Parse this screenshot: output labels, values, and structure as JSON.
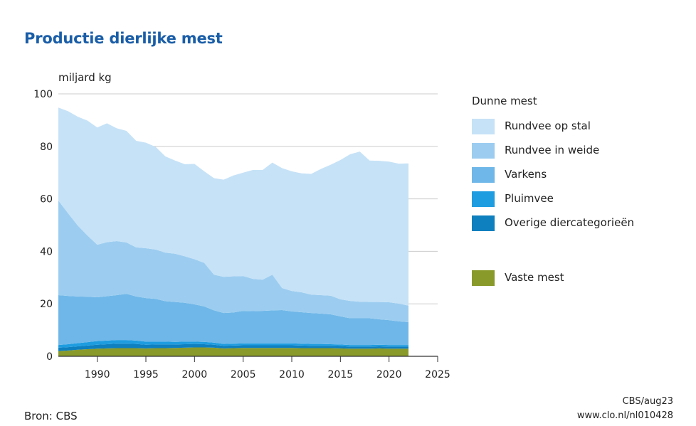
{
  "title": "Productie dierlijke mest",
  "source": "Bron: CBS",
  "credit_line1": "CBS/aug23",
  "credit_line2": "www.clo.nl/nl010428",
  "legend": {
    "group_title": "Dunne mest"
  },
  "colors": {
    "rundvee_op_stal": "#c6e2f7",
    "rundvee_in_weide": "#9ccdf0",
    "varkens": "#6fb7e8",
    "pluimvee": "#1e9de0",
    "overige": "#0e7fbf",
    "vaste_mest": "#8a9a2a",
    "title": "#1a5ea8",
    "grid": "#cccccc"
  },
  "chart_data": {
    "type": "area",
    "stacked": true,
    "title": "Productie dierlijke mest",
    "ylabel": "miljard kg",
    "xlabel": "",
    "xlim": [
      1986,
      2025
    ],
    "ylim": [
      0,
      100
    ],
    "x_ticks": [
      1990,
      1995,
      2000,
      2005,
      2010,
      2015,
      2020,
      2025
    ],
    "y_ticks": [
      0,
      20,
      40,
      60,
      80,
      100
    ],
    "grid": "horizontal",
    "legend_position": "right",
    "x": [
      1986,
      1987,
      1988,
      1989,
      1990,
      1991,
      1992,
      1993,
      1994,
      1995,
      1996,
      1997,
      1998,
      1999,
      2000,
      2001,
      2002,
      2003,
      2004,
      2005,
      2006,
      2007,
      2008,
      2009,
      2010,
      2011,
      2012,
      2013,
      2014,
      2015,
      2016,
      2017,
      2018,
      2019,
      2020,
      2021,
      2022
    ],
    "series": [
      {
        "name": "Vaste mest",
        "group": "",
        "color_key": "vaste_mest",
        "values": [
          2.0,
          2.2,
          2.5,
          2.7,
          2.9,
          3.0,
          3.1,
          3.1,
          3.1,
          3.0,
          3.1,
          3.1,
          3.2,
          3.3,
          3.4,
          3.4,
          3.3,
          3.0,
          3.1,
          3.2,
          3.2,
          3.2,
          3.2,
          3.2,
          3.2,
          3.1,
          3.1,
          3.1,
          3.1,
          3.0,
          2.9,
          2.9,
          2.9,
          3.0,
          2.9,
          2.9,
          2.9
        ]
      },
      {
        "name": "Overige diercategorieën",
        "group": "Dunne mest",
        "color_key": "overige",
        "values": [
          1.3,
          1.3,
          1.3,
          1.4,
          1.5,
          1.6,
          1.7,
          1.7,
          1.6,
          1.4,
          1.4,
          1.4,
          1.3,
          1.3,
          1.3,
          1.2,
          1.1,
          1.0,
          1.0,
          1.0,
          1.0,
          1.0,
          1.0,
          1.0,
          1.0,
          1.0,
          0.9,
          0.9,
          0.9,
          0.9,
          0.8,
          0.8,
          0.8,
          0.8,
          0.8,
          0.8,
          0.8
        ]
      },
      {
        "name": "Pluimvee",
        "group": "Dunne mest",
        "color_key": "pluimvee",
        "values": [
          1.0,
          1.1,
          1.2,
          1.3,
          1.4,
          1.4,
          1.4,
          1.4,
          1.3,
          1.2,
          1.1,
          1.1,
          1.0,
          1.0,
          0.9,
          0.9,
          0.8,
          0.7,
          0.7,
          0.7,
          0.7,
          0.7,
          0.7,
          0.7,
          0.7,
          0.7,
          0.7,
          0.7,
          0.6,
          0.6,
          0.6,
          0.6,
          0.6,
          0.6,
          0.6,
          0.6,
          0.6
        ]
      },
      {
        "name": "Varkens",
        "group": "Dunne mest",
        "color_key": "varkens",
        "values": [
          19.0,
          18.4,
          17.8,
          17.3,
          16.7,
          16.9,
          17.1,
          17.6,
          16.8,
          16.6,
          16.3,
          15.4,
          15.2,
          14.8,
          14.2,
          13.5,
          12.3,
          11.8,
          11.9,
          12.4,
          12.3,
          12.4,
          12.6,
          12.7,
          12.2,
          12.0,
          11.8,
          11.6,
          11.4,
          10.7,
          10.2,
          10.2,
          10.2,
          9.7,
          9.5,
          9.0,
          8.7
        ]
      },
      {
        "name": "Rundvee in weide",
        "group": "Dunne mest",
        "color_key": "rundvee_in_weide",
        "values": [
          36.0,
          31.5,
          27.0,
          23.3,
          20.0,
          20.6,
          20.6,
          19.6,
          18.7,
          19.0,
          18.8,
          18.5,
          18.4,
          17.7,
          17.2,
          16.6,
          13.6,
          13.8,
          13.8,
          13.3,
          12.3,
          11.9,
          13.6,
          8.4,
          7.8,
          7.6,
          7.0,
          7.0,
          7.1,
          6.5,
          6.6,
          6.3,
          6.2,
          6.6,
          6.8,
          6.8,
          6.3
        ]
      },
      {
        "name": "Rundvee op stal",
        "group": "Dunne mest",
        "color_key": "rundvee_op_stal",
        "values": [
          35.5,
          38.9,
          41.5,
          43.8,
          44.7,
          45.3,
          43.0,
          42.5,
          40.6,
          40.2,
          39.1,
          36.7,
          35.5,
          35.1,
          36.3,
          34.9,
          36.8,
          37.0,
          38.4,
          39.4,
          41.5,
          41.8,
          42.7,
          45.7,
          45.6,
          45.3,
          46.0,
          48.1,
          49.9,
          53.1,
          55.9,
          57.2,
          53.9,
          53.8,
          53.6,
          53.3,
          54.2
        ]
      }
    ],
    "legend_entries": [
      {
        "label": "Rundvee op stal",
        "color_key": "rundvee_op_stal"
      },
      {
        "label": "Rundvee in weide",
        "color_key": "rundvee_in_weide"
      },
      {
        "label": "Varkens",
        "color_key": "varkens"
      },
      {
        "label": "Pluimvee",
        "color_key": "pluimvee"
      },
      {
        "label": "Overige diercategorieën",
        "color_key": "overige"
      },
      {
        "label": "Vaste mest",
        "color_key": "vaste_mest"
      }
    ]
  }
}
